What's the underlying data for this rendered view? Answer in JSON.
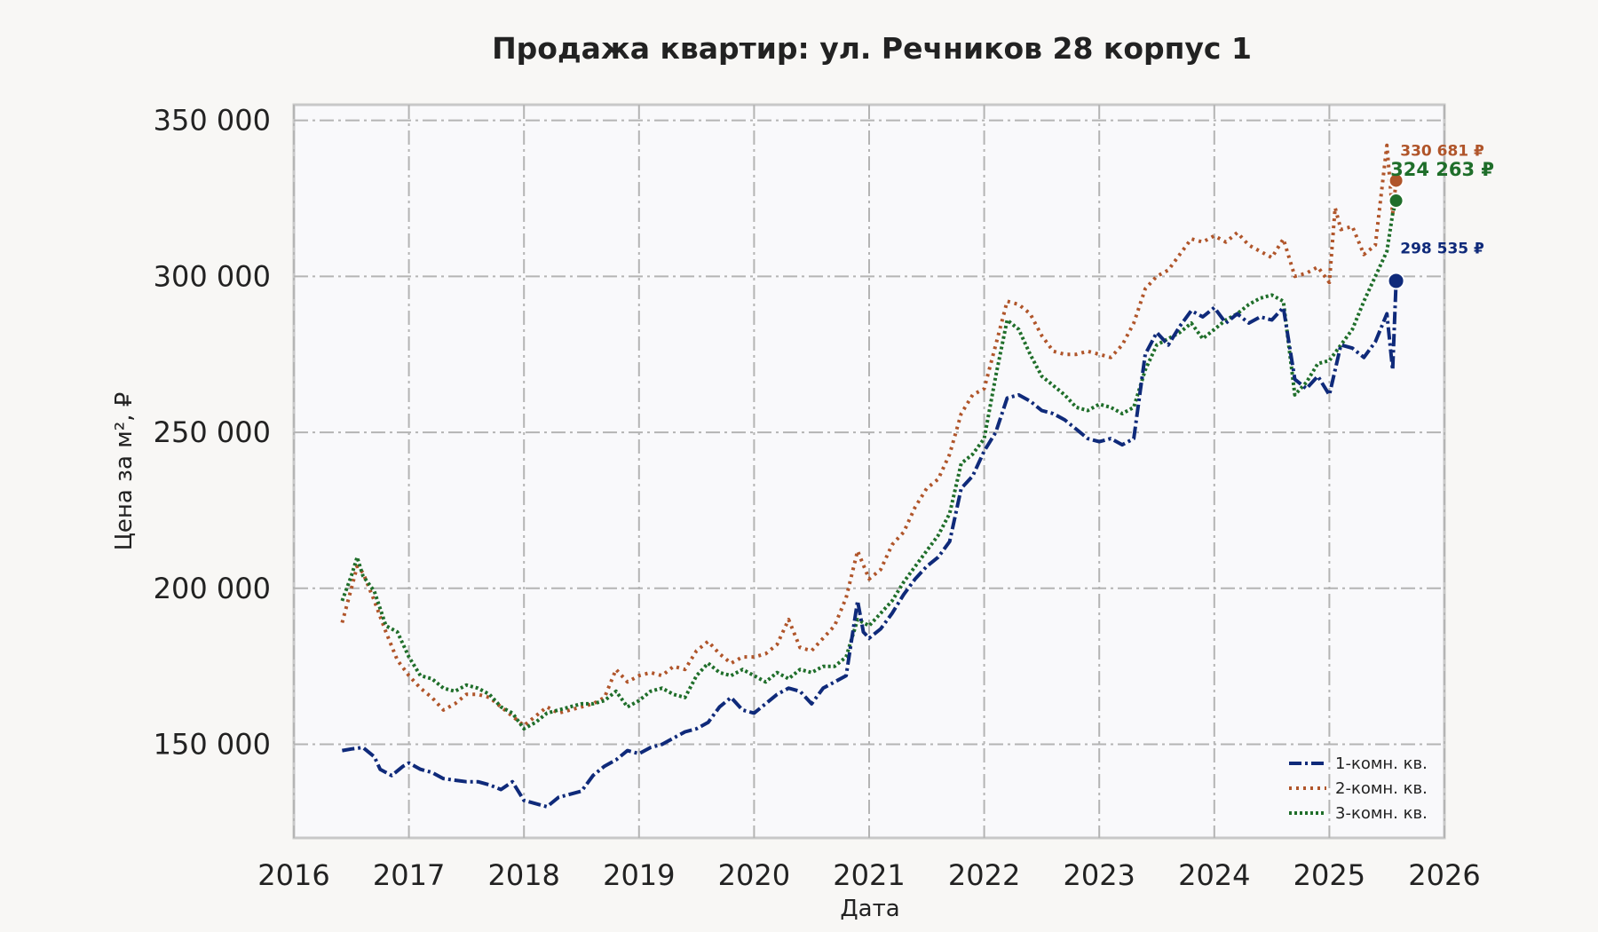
{
  "chart_data": {
    "type": "line",
    "title": "Продажа квартир: ул. Речников 28 корпус 1",
    "xlabel": "Дата",
    "ylabel": "Цена за м², ₽",
    "xlim": [
      2016.0,
      2026.0
    ],
    "ylim": [
      120000,
      355000
    ],
    "x_ticks": [
      2016,
      2017,
      2018,
      2019,
      2020,
      2021,
      2022,
      2023,
      2024,
      2025,
      2026
    ],
    "x_tick_labels": [
      "2016",
      "2017",
      "2018",
      "2019",
      "2020",
      "2021",
      "2022",
      "2023",
      "2024",
      "2025",
      "2026"
    ],
    "y_ticks": [
      150000,
      200000,
      250000,
      300000,
      350000
    ],
    "y_tick_labels": [
      "150 000",
      "200 000",
      "250 000",
      "300 000",
      "350 000"
    ],
    "grid": true,
    "legend_position": "bottom-right",
    "series": [
      {
        "name": "1-комн. кв.",
        "color": "#0f2a7a",
        "style": "dashdot",
        "end_value": 298535,
        "end_label": "298 535 ₽",
        "points": [
          [
            2016.42,
            148000
          ],
          [
            2016.5,
            148500
          ],
          [
            2016.6,
            149000
          ],
          [
            2016.7,
            146000
          ],
          [
            2016.75,
            142000
          ],
          [
            2016.85,
            140000
          ],
          [
            2016.95,
            143000
          ],
          [
            2017.0,
            144000
          ],
          [
            2017.1,
            142000
          ],
          [
            2017.2,
            141000
          ],
          [
            2017.3,
            139000
          ],
          [
            2017.4,
            138500
          ],
          [
            2017.5,
            138000
          ],
          [
            2017.6,
            138000
          ],
          [
            2017.7,
            137000
          ],
          [
            2017.8,
            135500
          ],
          [
            2017.9,
            138000
          ],
          [
            2018.0,
            132000
          ],
          [
            2018.1,
            131000
          ],
          [
            2018.2,
            130000
          ],
          [
            2018.3,
            133000
          ],
          [
            2018.4,
            134000
          ],
          [
            2018.5,
            135000
          ],
          [
            2018.6,
            140000
          ],
          [
            2018.7,
            143000
          ],
          [
            2018.8,
            145000
          ],
          [
            2018.9,
            148000
          ],
          [
            2019.0,
            147000
          ],
          [
            2019.1,
            149000
          ],
          [
            2019.2,
            150000
          ],
          [
            2019.3,
            152000
          ],
          [
            2019.4,
            154000
          ],
          [
            2019.5,
            155000
          ],
          [
            2019.6,
            157000
          ],
          [
            2019.7,
            162000
          ],
          [
            2019.8,
            165000
          ],
          [
            2019.9,
            161000
          ],
          [
            2020.0,
            160000
          ],
          [
            2020.1,
            163000
          ],
          [
            2020.2,
            166000
          ],
          [
            2020.3,
            168000
          ],
          [
            2020.4,
            167000
          ],
          [
            2020.5,
            163000
          ],
          [
            2020.6,
            168000
          ],
          [
            2020.7,
            170000
          ],
          [
            2020.8,
            172000
          ],
          [
            2020.9,
            196000
          ],
          [
            2020.95,
            186000
          ],
          [
            2021.0,
            184000
          ],
          [
            2021.1,
            187000
          ],
          [
            2021.2,
            192000
          ],
          [
            2021.3,
            198000
          ],
          [
            2021.4,
            203000
          ],
          [
            2021.5,
            207000
          ],
          [
            2021.6,
            210000
          ],
          [
            2021.7,
            215000
          ],
          [
            2021.8,
            232000
          ],
          [
            2021.9,
            236000
          ],
          [
            2022.0,
            244000
          ],
          [
            2022.1,
            250000
          ],
          [
            2022.2,
            261000
          ],
          [
            2022.3,
            262000
          ],
          [
            2022.4,
            260000
          ],
          [
            2022.5,
            257000
          ],
          [
            2022.6,
            256000
          ],
          [
            2022.7,
            254000
          ],
          [
            2022.8,
            251000
          ],
          [
            2022.9,
            248000
          ],
          [
            2023.0,
            247000
          ],
          [
            2023.1,
            248000
          ],
          [
            2023.2,
            246000
          ],
          [
            2023.3,
            248000
          ],
          [
            2023.4,
            275000
          ],
          [
            2023.5,
            282000
          ],
          [
            2023.6,
            278000
          ],
          [
            2023.7,
            284000
          ],
          [
            2023.8,
            289000
          ],
          [
            2023.9,
            287000
          ],
          [
            2024.0,
            290000
          ],
          [
            2024.1,
            285000
          ],
          [
            2024.2,
            288000
          ],
          [
            2024.3,
            285000
          ],
          [
            2024.4,
            287000
          ],
          [
            2024.5,
            286000
          ],
          [
            2024.6,
            290000
          ],
          [
            2024.7,
            267000
          ],
          [
            2024.8,
            264000
          ],
          [
            2024.9,
            268000
          ],
          [
            2025.0,
            262000
          ],
          [
            2025.1,
            278000
          ],
          [
            2025.2,
            277000
          ],
          [
            2025.3,
            274000
          ],
          [
            2025.4,
            279000
          ],
          [
            2025.5,
            288000
          ],
          [
            2025.55,
            270000
          ],
          [
            2025.58,
            298535
          ]
        ]
      },
      {
        "name": "2-комн. кв.",
        "color": "#b0552a",
        "style": "dotted",
        "end_value": 330681,
        "end_label": "330 681 ₽",
        "points": [
          [
            2016.42,
            189000
          ],
          [
            2016.5,
            200000
          ],
          [
            2016.55,
            207000
          ],
          [
            2016.6,
            205000
          ],
          [
            2016.7,
            196000
          ],
          [
            2016.8,
            186000
          ],
          [
            2016.9,
            177000
          ],
          [
            2017.0,
            172000
          ],
          [
            2017.1,
            168000
          ],
          [
            2017.2,
            165000
          ],
          [
            2017.3,
            161000
          ],
          [
            2017.4,
            163000
          ],
          [
            2017.5,
            166000
          ],
          [
            2017.6,
            166000
          ],
          [
            2017.7,
            165000
          ],
          [
            2017.8,
            162000
          ],
          [
            2017.9,
            159000
          ],
          [
            2018.0,
            156000
          ],
          [
            2018.1,
            159000
          ],
          [
            2018.2,
            162000
          ],
          [
            2018.3,
            160000
          ],
          [
            2018.4,
            161000
          ],
          [
            2018.5,
            162000
          ],
          [
            2018.6,
            163000
          ],
          [
            2018.7,
            165000
          ],
          [
            2018.8,
            174000
          ],
          [
            2018.9,
            170000
          ],
          [
            2019.0,
            172000
          ],
          [
            2019.1,
            173000
          ],
          [
            2019.2,
            172000
          ],
          [
            2019.3,
            175000
          ],
          [
            2019.4,
            174000
          ],
          [
            2019.5,
            180000
          ],
          [
            2019.6,
            183000
          ],
          [
            2019.7,
            179000
          ],
          [
            2019.8,
            176000
          ],
          [
            2019.9,
            178000
          ],
          [
            2020.0,
            178000
          ],
          [
            2020.1,
            179000
          ],
          [
            2020.2,
            182000
          ],
          [
            2020.3,
            190000
          ],
          [
            2020.4,
            181000
          ],
          [
            2020.5,
            180000
          ],
          [
            2020.6,
            184000
          ],
          [
            2020.7,
            188000
          ],
          [
            2020.8,
            197000
          ],
          [
            2020.9,
            212000
          ],
          [
            2021.0,
            203000
          ],
          [
            2021.1,
            206000
          ],
          [
            2021.2,
            214000
          ],
          [
            2021.3,
            218000
          ],
          [
            2021.4,
            226000
          ],
          [
            2021.5,
            232000
          ],
          [
            2021.6,
            235000
          ],
          [
            2021.7,
            243000
          ],
          [
            2021.8,
            256000
          ],
          [
            2021.9,
            262000
          ],
          [
            2022.0,
            264000
          ],
          [
            2022.1,
            278000
          ],
          [
            2022.2,
            292000
          ],
          [
            2022.3,
            291000
          ],
          [
            2022.4,
            288000
          ],
          [
            2022.5,
            281000
          ],
          [
            2022.6,
            276000
          ],
          [
            2022.7,
            275000
          ],
          [
            2022.8,
            275000
          ],
          [
            2022.9,
            276000
          ],
          [
            2023.0,
            275000
          ],
          [
            2023.1,
            274000
          ],
          [
            2023.2,
            278000
          ],
          [
            2023.3,
            285000
          ],
          [
            2023.4,
            296000
          ],
          [
            2023.5,
            300000
          ],
          [
            2023.6,
            302000
          ],
          [
            2023.7,
            307000
          ],
          [
            2023.8,
            312000
          ],
          [
            2023.9,
            311000
          ],
          [
            2024.0,
            313000
          ],
          [
            2024.1,
            311000
          ],
          [
            2024.2,
            314000
          ],
          [
            2024.3,
            310000
          ],
          [
            2024.4,
            308000
          ],
          [
            2024.5,
            306000
          ],
          [
            2024.6,
            312000
          ],
          [
            2024.7,
            300000
          ],
          [
            2024.8,
            301000
          ],
          [
            2024.9,
            303000
          ],
          [
            2025.0,
            298000
          ],
          [
            2025.05,
            322000
          ],
          [
            2025.1,
            315000
          ],
          [
            2025.2,
            316000
          ],
          [
            2025.3,
            307000
          ],
          [
            2025.4,
            310000
          ],
          [
            2025.5,
            342000
          ],
          [
            2025.55,
            320000
          ],
          [
            2025.58,
            330681
          ]
        ]
      },
      {
        "name": "3-комн. кв.",
        "color": "#1f6e2a",
        "style": "densely-dotted",
        "end_value": 324263,
        "end_label": "324 263 ₽",
        "points": [
          [
            2016.42,
            196000
          ],
          [
            2016.5,
            204000
          ],
          [
            2016.55,
            210000
          ],
          [
            2016.6,
            204000
          ],
          [
            2016.7,
            199000
          ],
          [
            2016.8,
            188000
          ],
          [
            2016.9,
            186000
          ],
          [
            2017.0,
            178000
          ],
          [
            2017.1,
            172000
          ],
          [
            2017.2,
            171000
          ],
          [
            2017.3,
            168000
          ],
          [
            2017.4,
            167000
          ],
          [
            2017.5,
            169000
          ],
          [
            2017.6,
            168000
          ],
          [
            2017.7,
            166000
          ],
          [
            2017.8,
            162000
          ],
          [
            2017.9,
            160000
          ],
          [
            2018.0,
            155000
          ],
          [
            2018.1,
            157000
          ],
          [
            2018.2,
            160000
          ],
          [
            2018.3,
            161000
          ],
          [
            2018.4,
            162000
          ],
          [
            2018.5,
            163000
          ],
          [
            2018.6,
            163000
          ],
          [
            2018.7,
            164000
          ],
          [
            2018.8,
            167000
          ],
          [
            2018.9,
            162000
          ],
          [
            2019.0,
            164000
          ],
          [
            2019.1,
            167000
          ],
          [
            2019.2,
            168000
          ],
          [
            2019.3,
            166000
          ],
          [
            2019.4,
            165000
          ],
          [
            2019.5,
            172000
          ],
          [
            2019.6,
            176000
          ],
          [
            2019.7,
            173000
          ],
          [
            2019.8,
            172000
          ],
          [
            2019.9,
            174000
          ],
          [
            2020.0,
            172000
          ],
          [
            2020.1,
            170000
          ],
          [
            2020.2,
            173000
          ],
          [
            2020.3,
            171000
          ],
          [
            2020.4,
            174000
          ],
          [
            2020.5,
            173000
          ],
          [
            2020.6,
            175000
          ],
          [
            2020.7,
            175000
          ],
          [
            2020.8,
            178000
          ],
          [
            2020.9,
            190000
          ],
          [
            2021.0,
            188000
          ],
          [
            2021.1,
            192000
          ],
          [
            2021.2,
            196000
          ],
          [
            2021.3,
            202000
          ],
          [
            2021.4,
            207000
          ],
          [
            2021.5,
            212000
          ],
          [
            2021.6,
            217000
          ],
          [
            2021.7,
            224000
          ],
          [
            2021.8,
            240000
          ],
          [
            2021.9,
            243000
          ],
          [
            2022.0,
            248000
          ],
          [
            2022.1,
            268000
          ],
          [
            2022.2,
            286000
          ],
          [
            2022.3,
            283000
          ],
          [
            2022.4,
            275000
          ],
          [
            2022.5,
            268000
          ],
          [
            2022.6,
            265000
          ],
          [
            2022.7,
            262000
          ],
          [
            2022.8,
            258000
          ],
          [
            2022.9,
            257000
          ],
          [
            2023.0,
            259000
          ],
          [
            2023.1,
            258000
          ],
          [
            2023.2,
            256000
          ],
          [
            2023.3,
            258000
          ],
          [
            2023.4,
            270000
          ],
          [
            2023.5,
            278000
          ],
          [
            2023.6,
            280000
          ],
          [
            2023.7,
            282000
          ],
          [
            2023.8,
            285000
          ],
          [
            2023.9,
            280000
          ],
          [
            2024.0,
            283000
          ],
          [
            2024.1,
            286000
          ],
          [
            2024.2,
            288000
          ],
          [
            2024.3,
            291000
          ],
          [
            2024.4,
            293000
          ],
          [
            2024.5,
            294000
          ],
          [
            2024.6,
            292000
          ],
          [
            2024.7,
            262000
          ],
          [
            2024.8,
            266000
          ],
          [
            2024.9,
            272000
          ],
          [
            2025.0,
            273000
          ],
          [
            2025.1,
            278000
          ],
          [
            2025.2,
            283000
          ],
          [
            2025.3,
            292000
          ],
          [
            2025.4,
            300000
          ],
          [
            2025.5,
            308000
          ],
          [
            2025.55,
            320000
          ],
          [
            2025.58,
            324263
          ]
        ]
      }
    ]
  }
}
